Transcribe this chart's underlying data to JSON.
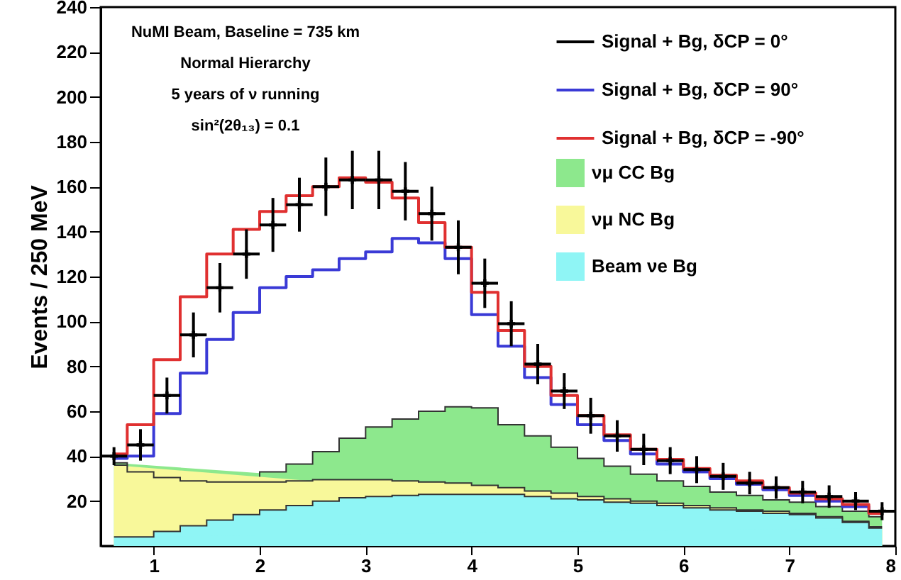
{
  "chart_data": {
    "type": "step",
    "ylabel": "Events / 250 MeV",
    "annotations": [
      "NuMI Beam, Baseline = 735 km",
      "Normal Hierarchy",
      "5 years of ν running",
      "sin²(2θ₁₃) = 0.1"
    ],
    "x": [
      0.625,
      0.875,
      1.125,
      1.375,
      1.625,
      1.875,
      2.125,
      2.375,
      2.625,
      2.875,
      3.125,
      3.375,
      3.625,
      3.875,
      4.125,
      4.375,
      4.625,
      4.875,
      5.125,
      5.375,
      5.625,
      5.875,
      6.125,
      6.375,
      6.625,
      6.875,
      7.125,
      7.375,
      7.625,
      7.875
    ],
    "xlim": [
      0.5,
      8
    ],
    "xticks": [
      1,
      2,
      3,
      4,
      5,
      6,
      7,
      8
    ],
    "ylim": [
      0,
      240
    ],
    "yticks": [
      20,
      40,
      60,
      80,
      100,
      120,
      140,
      160,
      180,
      200,
      220,
      240
    ],
    "stacked": true,
    "legend": "top right",
    "series": [
      {
        "name": "Signal + Bg, δCP = 0°",
        "color": "#000000",
        "type": "scatter",
        "marker": "cross",
        "values": [
          40,
          45,
          67,
          94,
          115,
          130,
          143,
          152,
          160,
          163,
          163,
          158,
          148,
          133,
          117,
          99,
          81,
          69,
          58,
          49,
          43,
          38,
          34,
          31,
          28,
          26,
          24,
          22,
          20,
          15.5
        ],
        "errors": [
          4,
          7,
          8,
          10,
          11,
          11,
          12,
          12,
          13,
          13,
          13,
          13,
          12,
          12,
          11,
          10,
          9,
          8,
          8,
          7,
          7,
          6,
          6,
          6,
          5,
          5,
          5,
          5,
          4,
          4
        ],
        "xerrors": [
          0.125,
          0.125,
          0.125,
          0.125,
          0.125,
          0.125,
          0.125,
          0.125,
          0.125,
          0.125,
          0.125,
          0.125,
          0.125,
          0.125,
          0.125,
          0.125,
          0.125,
          0.125,
          0.125,
          0.125,
          0.125,
          0.125,
          0.125,
          0.125,
          0.125,
          0.125,
          0.125,
          0.125,
          0.125,
          0.125
        ]
      },
      {
        "name": "Signal + Bg, δCP = 90°",
        "color": "#3a3ad6",
        "values": [
          39,
          40,
          59,
          77,
          92,
          104,
          115,
          120,
          123,
          128,
          131,
          137,
          135,
          128,
          103,
          89,
          75,
          63,
          54,
          47,
          41,
          36.5,
          33,
          30,
          27.5,
          25,
          22.5,
          20,
          17.5,
          14.5
        ]
      },
      {
        "name": "Signal + Bg, δCP = -90°",
        "color": "#e03030",
        "values": [
          41,
          54,
          83,
          111,
          130,
          141,
          149,
          156,
          160,
          164,
          162,
          155,
          144,
          133,
          113,
          96,
          80,
          67,
          58,
          49.5,
          43,
          38.5,
          34.5,
          31.5,
          29,
          26,
          23.5,
          21,
          18.5,
          14.5
        ]
      },
      {
        "name": "Beam νe Bg",
        "color": "#8ff5f5",
        "type": "area",
        "values": [
          4,
          4,
          6.5,
          9,
          11.5,
          14,
          16,
          18,
          20,
          21.5,
          22,
          22.5,
          23,
          23,
          23,
          23,
          22,
          21,
          20.5,
          19.5,
          19,
          18,
          17,
          16,
          15.5,
          14.5,
          14,
          12.5,
          10.5,
          8
        ]
      },
      {
        "name": "νμ NC Bg",
        "color": "#f8f89a",
        "type": "area",
        "values": [
          32,
          29,
          24,
          20,
          17,
          14.5,
          12.5,
          11,
          9.5,
          8,
          7.5,
          6.5,
          5.5,
          5,
          4,
          3,
          2.5,
          2.5,
          1.5,
          1.5,
          1,
          1,
          1,
          1,
          0.5,
          1,
          0.5,
          0.5,
          0.5,
          0.5
        ]
      },
      {
        "name": "νμ CC Bg",
        "color": "#8de88d",
        "type": "area",
        "values": [
          1,
          0.5,
          0.5,
          0,
          0,
          1.5,
          4.5,
          7.5,
          12.5,
          18.5,
          23.5,
          27.5,
          31.5,
          34,
          34.5,
          28,
          24.5,
          20.5,
          17,
          14.5,
          12,
          10,
          8.5,
          7,
          6.5,
          5,
          5,
          4.5,
          4.5,
          4.5
        ]
      }
    ]
  }
}
